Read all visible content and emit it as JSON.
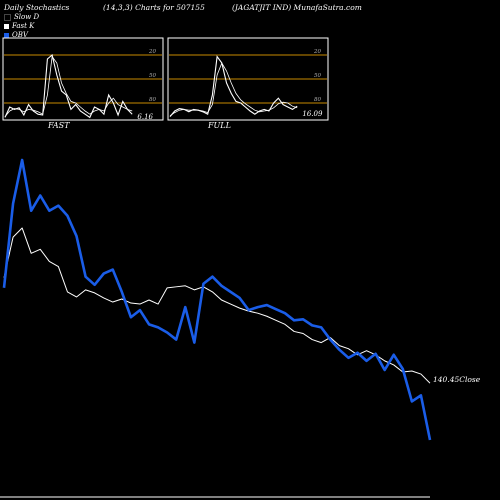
{
  "header": {
    "left": "Daily Stochastics",
    "middle": "(14,3,3) Charts for 507155",
    "right": "(JAGATJIT IND) MunafaSutra.com"
  },
  "legend": [
    {
      "label": "Slow D",
      "color": "#000000"
    },
    {
      "label": "Fast K",
      "color": "#ffffff"
    },
    {
      "label": "OBV",
      "color": "#1a5de8"
    }
  ],
  "colors": {
    "background": "#000000",
    "price": "#ffffff",
    "obv": "#1a5de8",
    "ref_line": "#c98a00"
  },
  "chart_data": [
    {
      "type": "line",
      "title": "FAST",
      "ylim": [
        0,
        100
      ],
      "ref_lines": [
        20,
        50,
        80
      ],
      "tick_labels": [
        "80",
        "50",
        "20"
      ],
      "last_value_label": "6.16",
      "series": [
        {
          "name": "Fast K",
          "values": [
            2,
            15,
            12,
            14,
            5,
            18,
            10,
            6,
            5,
            75,
            80,
            55,
            35,
            30,
            12,
            18,
            10,
            6,
            2,
            15,
            12,
            6,
            30,
            20,
            5,
            22,
            12,
            6
          ]
        },
        {
          "name": "Slow D",
          "values": [
            3,
            10,
            13,
            12,
            9,
            12,
            11,
            9,
            6,
            30,
            78,
            70,
            45,
            32,
            22,
            20,
            15,
            10,
            6,
            10,
            12,
            10,
            20,
            26,
            18,
            15,
            12,
            10
          ]
        }
      ]
    },
    {
      "type": "line",
      "title": "FULL",
      "ylim": [
        0,
        100
      ],
      "ref_lines": [
        20,
        50,
        80
      ],
      "tick_labels": [
        "80",
        "50",
        "20"
      ],
      "last_value_label": "16.09",
      "series": [
        {
          "name": "Full K",
          "values": [
            3,
            10,
            13,
            12,
            9,
            12,
            11,
            9,
            6,
            30,
            78,
            70,
            45,
            32,
            22,
            20,
            15,
            10,
            6,
            10,
            12,
            10,
            20,
            26,
            18,
            15,
            12,
            16
          ]
        },
        {
          "name": "Full D",
          "values": [
            4,
            8,
            11,
            12,
            11,
            11,
            11,
            10,
            8,
            18,
            55,
            70,
            60,
            45,
            32,
            24,
            19,
            15,
            11,
            9,
            10,
            11,
            14,
            19,
            21,
            20,
            16,
            14
          ]
        }
      ]
    },
    {
      "type": "line",
      "title": "",
      "end_label": "140.45Close",
      "series": [
        {
          "name": "Close",
          "values": [
            276,
            236,
            227,
            252,
            248,
            260,
            265,
            290,
            295,
            288,
            291,
            296,
            300,
            297,
            301,
            302,
            298,
            302,
            286,
            285,
            284,
            288,
            285,
            290,
            298,
            302,
            306,
            309,
            311,
            314,
            318,
            322,
            329,
            331,
            337,
            340,
            335,
            343,
            346,
            352,
            348,
            352,
            358,
            362,
            369,
            368,
            371,
            380
          ]
        },
        {
          "name": "OBV",
          "values": [
            286,
            203,
            160,
            210,
            195,
            210,
            205,
            215,
            235,
            275,
            283,
            272,
            268,
            290,
            315,
            308,
            322,
            325,
            330,
            337,
            305,
            340,
            282,
            275,
            284,
            290,
            296,
            308,
            305,
            303,
            307,
            311,
            318,
            317,
            323,
            325,
            337,
            347,
            355,
            350,
            358,
            351,
            367,
            352,
            366,
            398,
            392,
            436
          ]
        }
      ]
    }
  ]
}
